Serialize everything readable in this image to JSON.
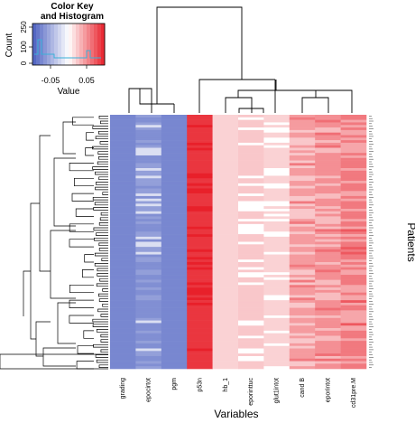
{
  "chart_data": {
    "type": "heatmap",
    "xlabel": "Variables",
    "ylabel": "Patients",
    "columns": [
      "grading",
      "epocirtot",
      "pgm",
      "p53n",
      "hb_1",
      "eporinttuc",
      "glut1intot",
      "cand B",
      "eporintot",
      "cd31pre.M"
    ],
    "column_values": [
      -0.075,
      -0.07,
      -0.075,
      0.09,
      0.02,
      0.025,
      0.02,
      0.045,
      0.05,
      0.06
    ],
    "color_key": {
      "title": "Color Key\nand Histogram",
      "xlabel": "Value",
      "ylabel": "Count",
      "x_ticks": [
        "-0.05",
        "0.05"
      ],
      "y_ticks": [
        "0",
        "100",
        "250"
      ],
      "range": [
        -0.1,
        0.1
      ],
      "colors": {
        "low": "#4b5fc0",
        "mid": "#ffffff",
        "high": "#e8202a"
      }
    },
    "n_rows": 100
  }
}
